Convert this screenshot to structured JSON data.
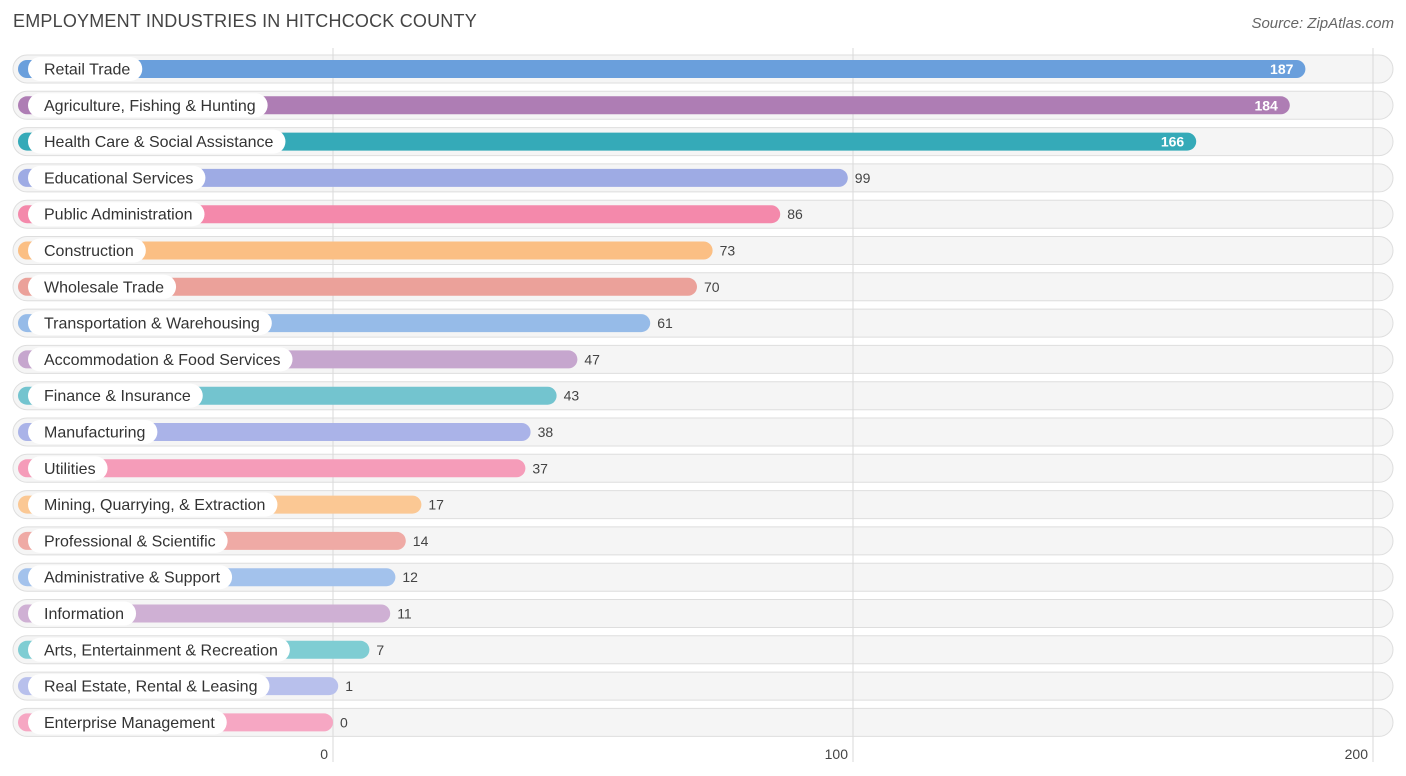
{
  "title": "EMPLOYMENT INDUSTRIES IN HITCHCOCK COUNTY",
  "source": "Source: ZipAtlas.com",
  "chart_data": {
    "type": "bar",
    "orientation": "horizontal",
    "title": "EMPLOYMENT INDUSTRIES IN HITCHCOCK COUNTY",
    "xlabel": "",
    "ylabel": "",
    "xlim": [
      0,
      200
    ],
    "ticks": [
      0,
      100,
      200
    ],
    "grid": true,
    "categories": [
      "Retail Trade",
      "Agriculture, Fishing & Hunting",
      "Health Care & Social Assistance",
      "Educational Services",
      "Public Administration",
      "Construction",
      "Wholesale Trade",
      "Transportation & Warehousing",
      "Accommodation & Food Services",
      "Finance & Insurance",
      "Manufacturing",
      "Utilities",
      "Mining, Quarrying, & Extraction",
      "Professional & Scientific",
      "Administrative & Support",
      "Information",
      "Arts, Entertainment & Recreation",
      "Real Estate, Rental & Leasing",
      "Enterprise Management"
    ],
    "values": [
      187,
      184,
      166,
      99,
      86,
      73,
      70,
      61,
      47,
      43,
      38,
      37,
      17,
      14,
      12,
      11,
      7,
      1,
      0
    ],
    "colors": [
      "#6a9fdc",
      "#ae7db4",
      "#35aab8",
      "#9eabe4",
      "#f489ab",
      "#fbbf84",
      "#eba19a",
      "#96bbe8",
      "#c6a6ce",
      "#73c4cf",
      "#aab3e8",
      "#f59cb9",
      "#fbc894",
      "#efaaa5",
      "#a3c2ec",
      "#cfb0d4",
      "#7fcdd3",
      "#b8c0ec",
      "#f6a7c3"
    ]
  }
}
